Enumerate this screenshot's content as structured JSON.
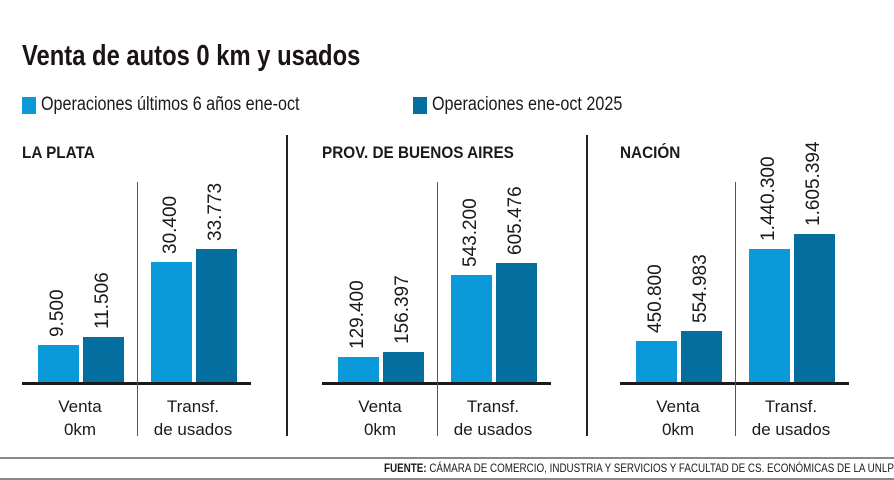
{
  "title": "Venta de autos 0 km y usados",
  "legend": [
    {
      "label": "Operaciones últimos 6 años ene-oct",
      "color": "#0a9ad9"
    },
    {
      "label": "Operaciones ene-oct 2025",
      "color": "#046f9e"
    }
  ],
  "chart_data": [
    {
      "type": "bar",
      "title": "LA PLATA",
      "categories": [
        "Venta 0km",
        "Transf. de usados"
      ],
      "series": [
        {
          "name": "Operaciones últimos 6 años ene-oct",
          "values": [
            9500,
            30400
          ],
          "labels": [
            "9.500",
            "30.400"
          ]
        },
        {
          "name": "Operaciones ene-oct 2025",
          "values": [
            11506,
            33773
          ],
          "labels": [
            "11.506",
            "33.773"
          ]
        }
      ]
    },
    {
      "type": "bar",
      "title": "PROV. DE BUENOS AIRES",
      "categories": [
        "Venta 0km",
        "Transf. de usados"
      ],
      "series": [
        {
          "name": "Operaciones últimos 6 años ene-oct",
          "values": [
            129400,
            543200
          ],
          "labels": [
            "129.400",
            "543.200"
          ]
        },
        {
          "name": "Operaciones ene-oct 2025",
          "values": [
            156397,
            605476
          ],
          "labels": [
            "156.397",
            "605.476"
          ]
        }
      ]
    },
    {
      "type": "bar",
      "title": "NACIÓN",
      "categories": [
        "Venta 0km",
        "Transf. de usados"
      ],
      "series": [
        {
          "name": "Operaciones últimos 6 años ene-oct",
          "values": [
            450800,
            1440300
          ],
          "labels": [
            "450.800",
            "1.440.300"
          ]
        },
        {
          "name": "Operaciones ene-oct 2025",
          "values": [
            554983,
            1605394
          ],
          "labels": [
            "554.983",
            "1.605.394"
          ]
        }
      ]
    }
  ],
  "categories_display": [
    [
      "Venta",
      "0km"
    ],
    [
      "Transf.",
      "de usados"
    ]
  ],
  "source": {
    "prefix": "FUENTE:",
    "text": " CÁMARA DE COMERCIO, INDUSTRIA Y SERVICIOS Y FACULTAD DE CS. ECONÓMICAS DE LA UNLP"
  }
}
